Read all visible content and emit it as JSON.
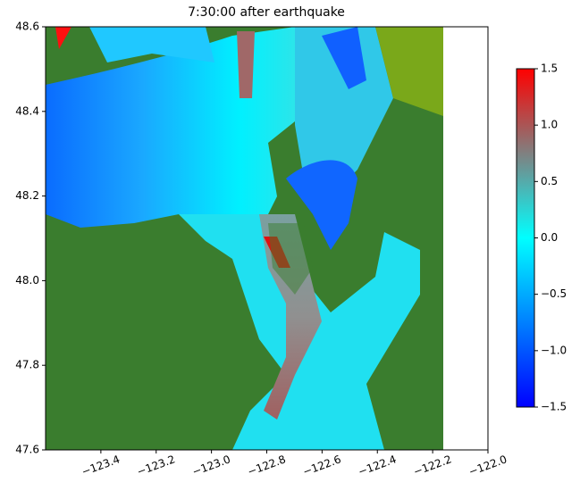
{
  "chart_data": {
    "type": "heatmap",
    "title": "7:30:00 after earthquake",
    "xlim": [
      -123.6,
      -122.0
    ],
    "xticks": [
      {
        "value": -123.4,
        "label": "−123.4"
      },
      {
        "value": -123.2,
        "label": "−123.2"
      },
      {
        "value": -123.0,
        "label": "−123.0"
      },
      {
        "value": -122.8,
        "label": "−122.8"
      },
      {
        "value": -122.6,
        "label": "−122.6"
      },
      {
        "value": -122.4,
        "label": "−122.4"
      },
      {
        "value": -122.2,
        "label": "−122.2"
      },
      {
        "value": -122.0,
        "label": "−122.0"
      }
    ],
    "ylim": [
      47.6,
      48.6
    ],
    "yticks": [
      47.6,
      47.8,
      {
        "value": 48,
        "label": "48.0"
      },
      48.2,
      48.4,
      48.6
    ],
    "colorbar": {
      "lim": [
        -1.5,
        1.5
      ],
      "ticks": [
        {
          "value": -1.5,
          "label": "−1.5"
        },
        {
          "value": -1.0,
          "label": "−1.0"
        },
        {
          "value": -0.5,
          "label": "−0.5"
        },
        {
          "value": 0,
          "label": "0.0"
        },
        0.5,
        {
          "value": 1,
          "label": "1.0"
        },
        1.5
      ],
      "colors": [
        "#0000ff",
        "#0080ff",
        "#00ffff",
        "#808080",
        "#ff0000"
      ]
    }
  }
}
